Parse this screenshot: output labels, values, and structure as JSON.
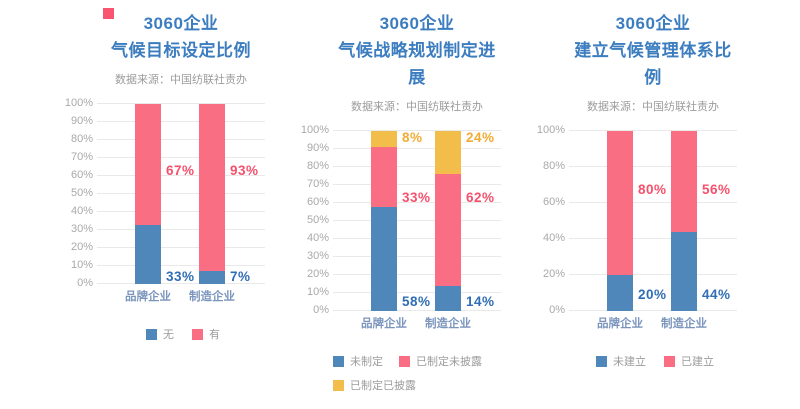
{
  "colors": {
    "title": "#3c7dc0",
    "muted_text": "#9c9c9c",
    "axis_text": "#a9a9a9",
    "gridline": "#e9e9e9",
    "category_text": "#7b95bd",
    "decor_red": "#fa5570",
    "bar": {
      "blue": "#5087ba",
      "pink": "#f96e82",
      "yellow": "#f3bd4b"
    },
    "value_label": {
      "blue": "#2f6eb5",
      "pink": "#f7506c",
      "yellow": "#f2ab33"
    }
  },
  "chart_data": [
    {
      "type": "bar",
      "stacked": true,
      "title_lines": [
        "3060企业",
        "气候目标设定比例"
      ],
      "source": "数据来源：中国纺联社责办",
      "categories": [
        "品牌企业",
        "制造企业"
      ],
      "ylim": [
        0,
        100
      ],
      "y_tick_step": 10,
      "y_tick_suffix": "%",
      "grid": true,
      "legend_position": "bottom",
      "legend_align": "center",
      "series": [
        {
          "name": "无",
          "color": "blue",
          "values": [
            33,
            7
          ],
          "label_pos_pct": 4
        },
        {
          "name": "有",
          "color": "pink",
          "values": [
            67,
            93
          ],
          "label_pos_pct": 63
        }
      ]
    },
    {
      "type": "bar",
      "stacked": true,
      "title_lines": [
        "3060企业",
        "气候战略规划制定进展"
      ],
      "source": "数据来源：中国纺联社责办",
      "categories": [
        "品牌企业",
        "制造企业"
      ],
      "ylim": [
        0,
        100
      ],
      "y_tick_step": 10,
      "y_tick_suffix": "%",
      "grid": true,
      "legend_position": "bottom",
      "legend_align": "left",
      "series": [
        {
          "name": "未制定",
          "color": "blue",
          "values": [
            58,
            14
          ],
          "label_pos_pct": 5
        },
        {
          "name": "已制定未披露",
          "color": "pink",
          "values": [
            33,
            62
          ],
          "label_pos_pct": 63
        },
        {
          "name": "已制定已披露",
          "color": "yellow",
          "values": [
            8,
            24
          ],
          "label_pos_pct": 96
        }
      ]
    },
    {
      "type": "bar",
      "stacked": true,
      "title_lines": [
        "3060企业",
        "建立气候管理体系比例"
      ],
      "source": "数据来源：中国纺联社责办",
      "categories": [
        "品牌企业",
        "制造企业"
      ],
      "ylim": [
        0,
        100
      ],
      "y_tick_step": 20,
      "y_tick_suffix": "%",
      "grid": true,
      "legend_position": "bottom",
      "legend_align": "center",
      "series": [
        {
          "name": "未建立",
          "color": "blue",
          "values": [
            20,
            44
          ],
          "label_pos_pct": 9
        },
        {
          "name": "已建立",
          "color": "pink",
          "values": [
            80,
            56
          ],
          "label_pos_pct": 67
        }
      ]
    }
  ]
}
